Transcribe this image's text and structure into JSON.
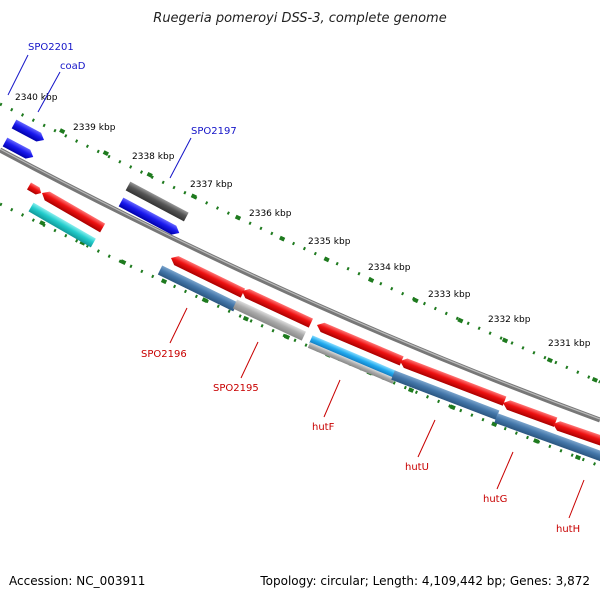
{
  "title": "Ruegeria pomeroyi DSS-3, complete genome",
  "footer": {
    "accession": "Accession: NC_003911",
    "summary": "Topology: circular; Length: 4,109,442 bp; Genes: 3,872"
  },
  "ticks": [
    "2340 kbp",
    "2339 kbp",
    "2338 kbp",
    "2337 kbp",
    "2336 kbp",
    "2335 kbp",
    "2334 kbp",
    "2333 kbp",
    "2332 kbp",
    "2331 kbp"
  ],
  "labels": {
    "spo2201": "SPO2201",
    "coad": "coaD",
    "spo2197": "SPO2197",
    "spo2196": "SPO2196",
    "spo2195": "SPO2195",
    "hutf": "hutF",
    "hutu": "hutU",
    "hutg": "hutG",
    "huth": "hutH"
  },
  "colors": {
    "backbone": "#777777",
    "tick": "#1e7a1e",
    "label_blue": "#1414c8",
    "label_red": "#c80000",
    "gene_red": "#ee1111",
    "gene_blue": "#1a1aee",
    "gene_gray": "#555555",
    "gene_cyan": "#22cccc",
    "gene_steel": "#4477aa",
    "gene_light": "#aaaaaa",
    "gene_sky": "#22aaee"
  }
}
